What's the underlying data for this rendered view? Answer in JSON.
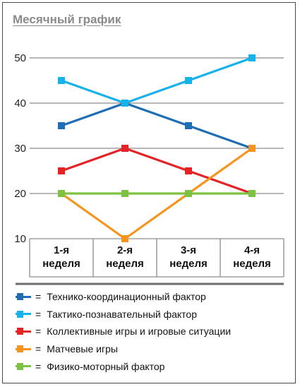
{
  "title": "Месячный график",
  "chart_data": {
    "type": "line",
    "title": "Месячный график",
    "categories": [
      [
        "1-я",
        "неделя"
      ],
      [
        "2-я",
        "неделя"
      ],
      [
        "3-я",
        "неделя"
      ],
      [
        "4-я",
        "неделя"
      ]
    ],
    "yticks": [
      10,
      20,
      30,
      40,
      50
    ],
    "ylim": [
      10,
      50
    ],
    "grid": true,
    "legend_position": "bottom",
    "series": [
      {
        "name": "Технико-координационный фактор",
        "color": "#1f6db5",
        "values": [
          35,
          40,
          35,
          30
        ]
      },
      {
        "name": "Тактико-познавательный фактор",
        "color": "#17b2ea",
        "values": [
          45,
          40,
          45,
          50
        ]
      },
      {
        "name": "Коллективные игры и игровые ситуации",
        "color": "#e32326",
        "values": [
          25,
          30,
          25,
          20
        ]
      },
      {
        "name": "Матчевые игры",
        "color": "#f7941d",
        "values": [
          20,
          10,
          20,
          30
        ]
      },
      {
        "name": "Физико-моторный фактор",
        "color": "#7dc242",
        "values": [
          20,
          20,
          20,
          20
        ]
      }
    ]
  },
  "legend": {
    "equals": "="
  }
}
